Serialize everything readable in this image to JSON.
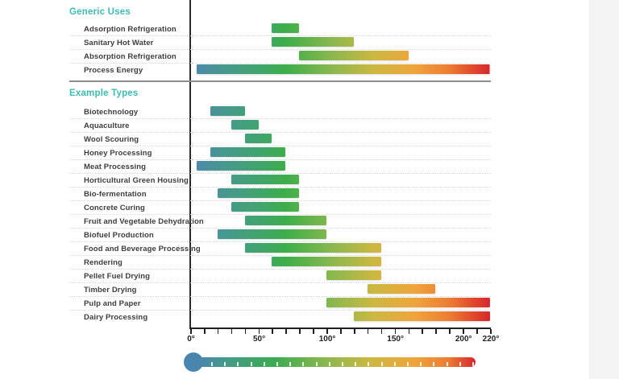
{
  "page": {
    "background": "#ffffff",
    "side_panel_color": "#f4f4f5"
  },
  "colors": {
    "header_teal": "#3cbcb4",
    "label": "#3e3e40",
    "axis": "#231f20",
    "dotted_divider": "#d7d7d7",
    "section_separator": "#8d8d8f",
    "thermometer_bulb": "#4a85ad"
  },
  "chart_data": {
    "type": "bar",
    "subtype": "horizontal-temperature-range-bars",
    "unit": "degrees",
    "tick_label_suffix": "°",
    "axis": {
      "min": 0,
      "max": 220,
      "major_ticks": [
        0,
        50,
        100,
        150,
        200,
        220
      ],
      "minor_tick_step": 10,
      "orientation": "horizontal-bottom"
    },
    "gradient_stops": [
      {
        "temp": 0,
        "color": "#4d87af"
      },
      {
        "temp": 25,
        "color": "#47988f"
      },
      {
        "temp": 55,
        "color": "#3fa767"
      },
      {
        "temp": 70,
        "color": "#3cae49"
      },
      {
        "temp": 105,
        "color": "#8cb84f"
      },
      {
        "temp": 135,
        "color": "#cdb841"
      },
      {
        "temp": 165,
        "color": "#f0a43c"
      },
      {
        "temp": 190,
        "color": "#ec7d33"
      },
      {
        "temp": 207,
        "color": "#e14b2c"
      },
      {
        "temp": 220,
        "color": "#d5272e"
      }
    ],
    "groups": [
      {
        "title": "Generic Uses",
        "items": [
          {
            "label": "Adsorption Refrigeration",
            "range": [
              60,
              80
            ]
          },
          {
            "label": "Sanitary Hot Water",
            "range": [
              60,
              120
            ]
          },
          {
            "label": "Absorption Refrigeration",
            "range": [
              80,
              160
            ]
          },
          {
            "label": "Process Energy",
            "range": [
              5,
              220
            ]
          }
        ]
      },
      {
        "title": "Example Types",
        "items": [
          {
            "label": "Biotechnology",
            "range": [
              15,
              40
            ]
          },
          {
            "label": "Aquaculture",
            "range": [
              30,
              50
            ]
          },
          {
            "label": "Wool Scouring",
            "range": [
              40,
              60
            ]
          },
          {
            "label": "Honey Processing",
            "range": [
              15,
              70
            ]
          },
          {
            "label": "Meat Processing",
            "range": [
              5,
              70
            ]
          },
          {
            "label": "Horticultural Green Housing",
            "range": [
              30,
              80
            ]
          },
          {
            "label": "Bio-fermentation",
            "range": [
              20,
              80
            ]
          },
          {
            "label": "Concrete Curing",
            "range": [
              30,
              80
            ]
          },
          {
            "label": "Fruit and Vegetable Dehydration",
            "range": [
              40,
              100
            ]
          },
          {
            "label": "Biofuel Production",
            "range": [
              20,
              100
            ]
          },
          {
            "label": "Food and Beverage Processing",
            "range": [
              40,
              140
            ]
          },
          {
            "label": "Rendering",
            "range": [
              60,
              140
            ]
          },
          {
            "label": "Pellet Fuel Drying",
            "range": [
              100,
              140
            ]
          },
          {
            "label": "Timber Drying",
            "range": [
              130,
              180
            ]
          },
          {
            "label": "Pulp and Paper",
            "range": [
              100,
              220
            ]
          },
          {
            "label": "Dairy Processing",
            "range": [
              120,
              220
            ]
          }
        ]
      }
    ],
    "legend_thermometer": {
      "bulb_color": "#4a85ad",
      "tick_count": 21,
      "gradient_stops": [
        {
          "pos": 0,
          "color": "#4a85ad"
        },
        {
          "pos": 8,
          "color": "#45988f"
        },
        {
          "pos": 27,
          "color": "#3bab51"
        },
        {
          "pos": 46,
          "color": "#8cb84f"
        },
        {
          "pos": 62,
          "color": "#cdb841"
        },
        {
          "pos": 78,
          "color": "#f0a43c"
        },
        {
          "pos": 90,
          "color": "#ec7d33"
        },
        {
          "pos": 100,
          "color": "#d5272e"
        }
      ]
    }
  }
}
